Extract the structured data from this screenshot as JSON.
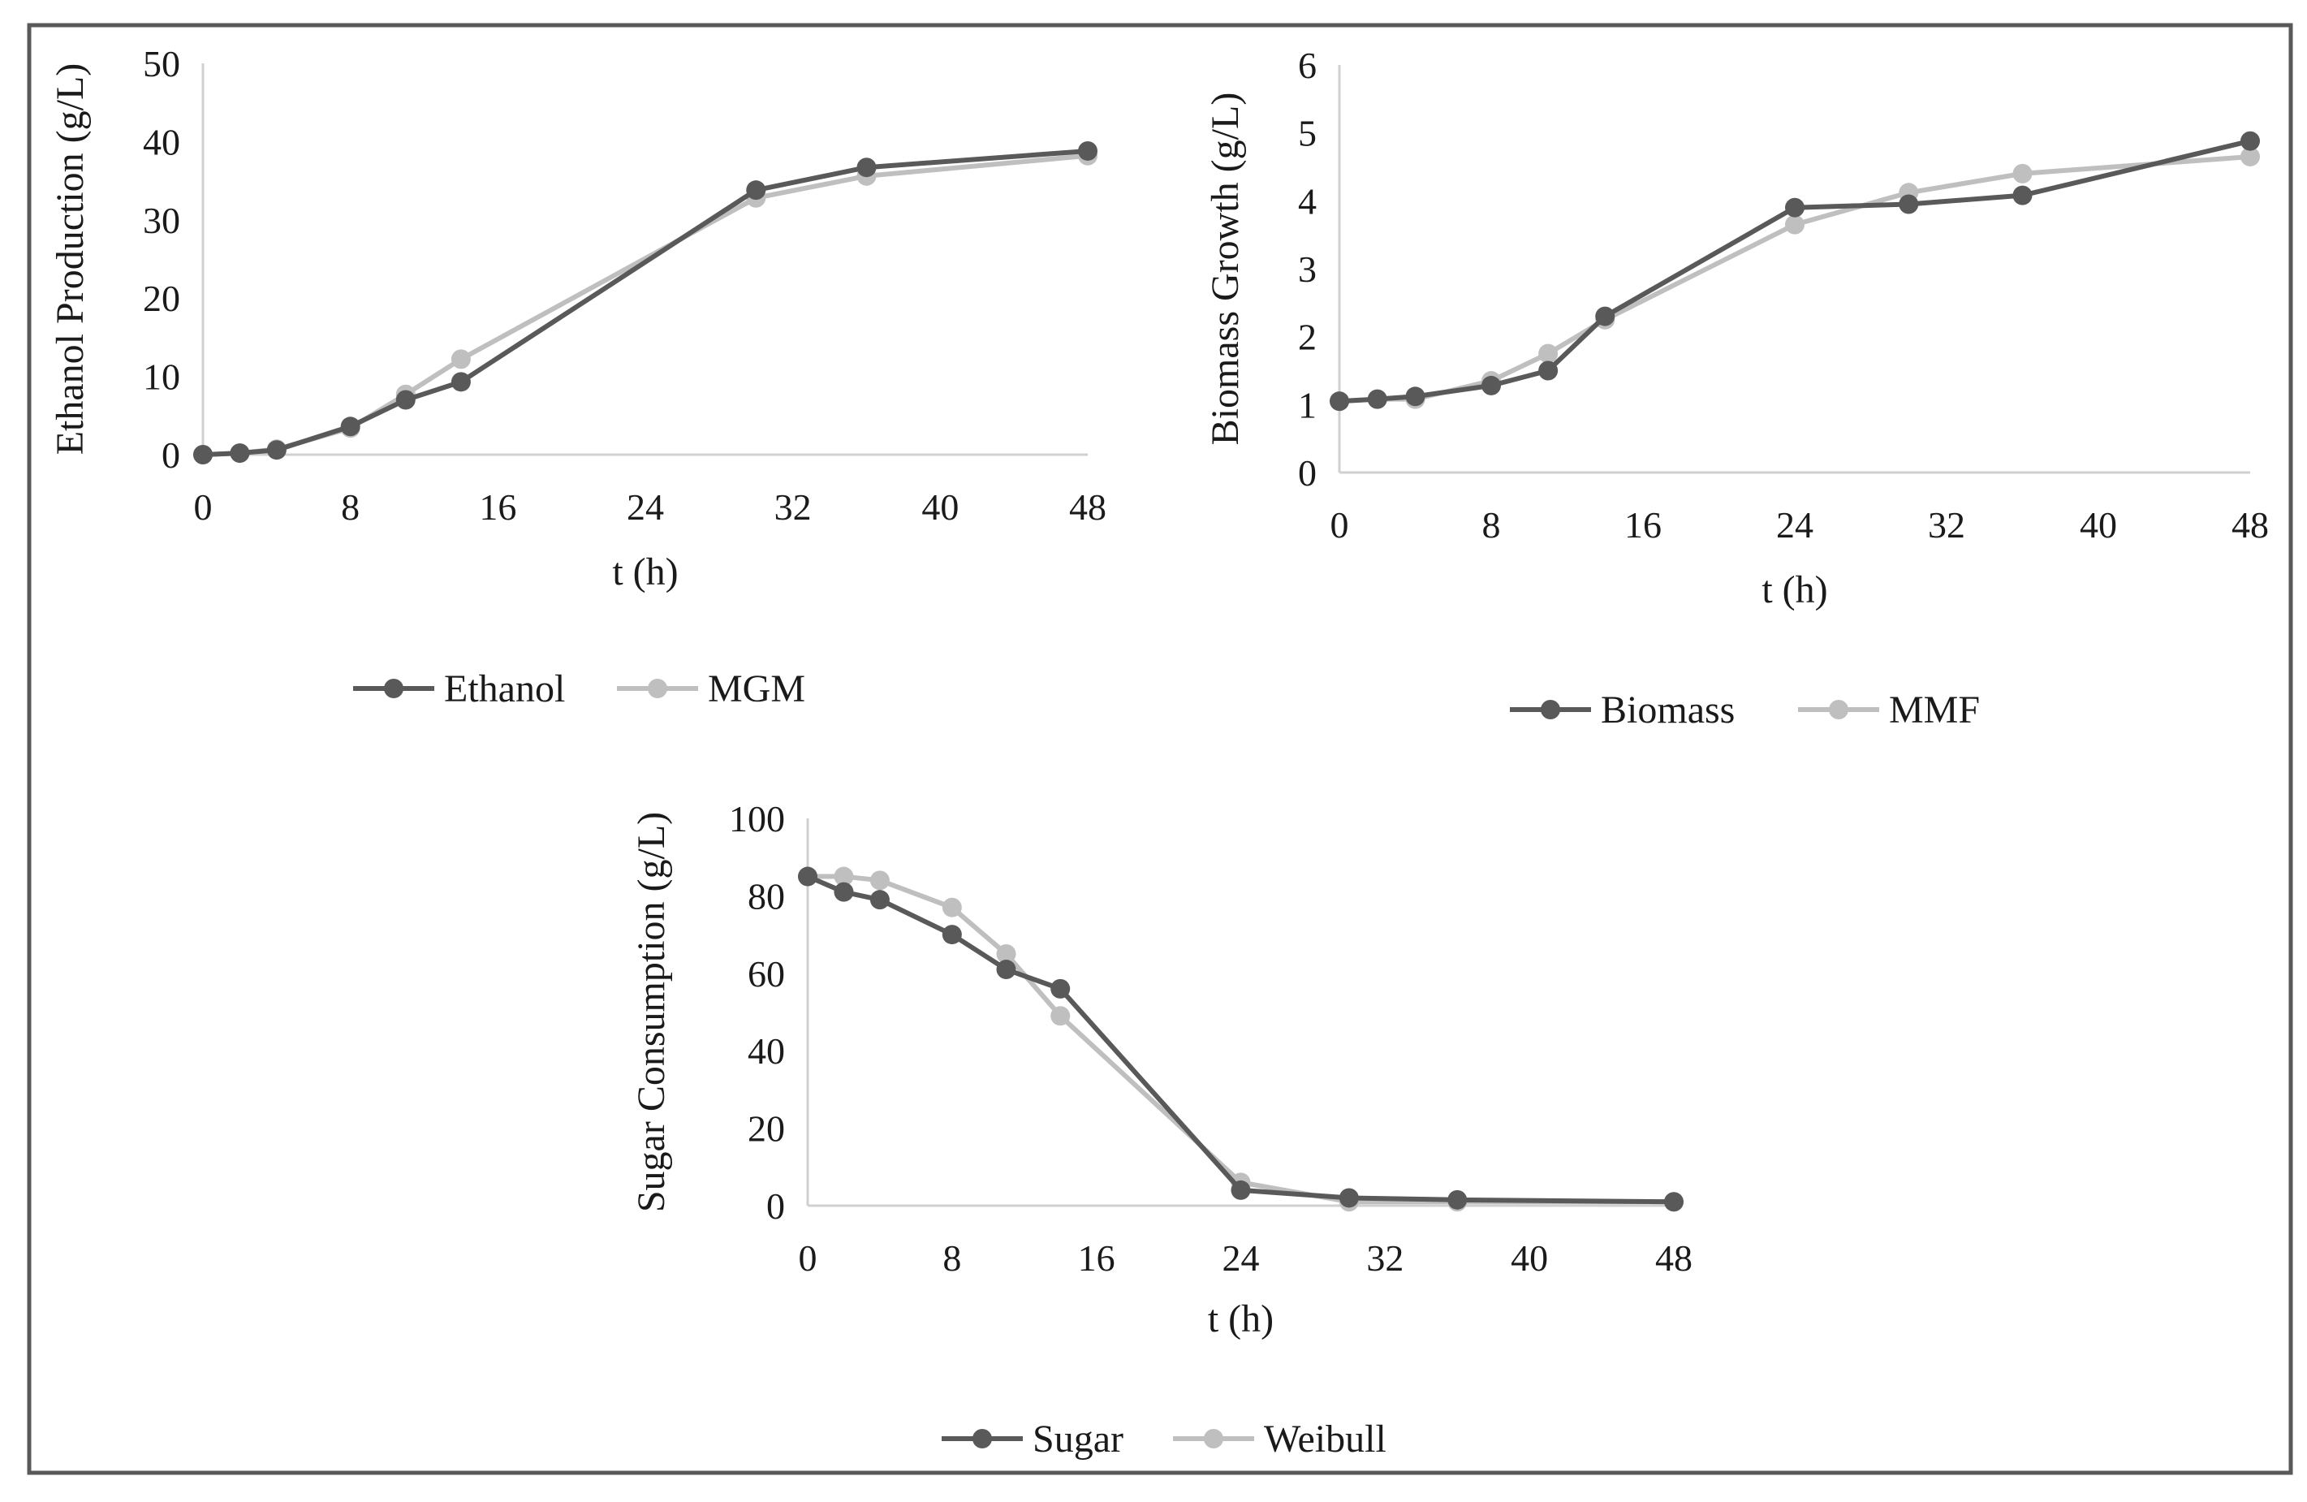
{
  "colors": {
    "series_dark": "#595959",
    "series_light": "#bfbfbf",
    "axis": "#d0d0d0",
    "border": "#595959"
  },
  "chart_data": [
    {
      "type": "line",
      "title": "",
      "xlabel": "t (h)",
      "ylabel": "Ethanol Production (g/L)",
      "xlim": [
        0,
        48
      ],
      "ylim": [
        0,
        50
      ],
      "xticks": [
        0,
        8,
        16,
        24,
        32,
        40,
        48
      ],
      "yticks": [
        0,
        10,
        20,
        30,
        40,
        50
      ],
      "grid": false,
      "legend": "bottom",
      "series": [
        {
          "name": "Ethanol",
          "x": [
            0,
            2,
            4,
            8,
            11,
            14,
            30,
            36,
            48
          ],
          "y": [
            0,
            0.2,
            0.6,
            3.6,
            7.0,
            9.3,
            33.8,
            36.7,
            38.8
          ]
        },
        {
          "name": "MGM",
          "x": [
            0,
            2,
            4,
            8,
            11,
            14,
            30,
            36,
            48
          ],
          "y": [
            0,
            0.2,
            0.7,
            3.4,
            7.7,
            12.2,
            32.8,
            35.6,
            38.2
          ]
        }
      ]
    },
    {
      "type": "line",
      "title": "",
      "xlabel": "t (h)",
      "ylabel": "Biomass Growth (g/L)",
      "xlim": [
        0,
        48
      ],
      "ylim": [
        0,
        6
      ],
      "xticks": [
        0,
        8,
        16,
        24,
        32,
        40,
        48
      ],
      "yticks": [
        0,
        1,
        2,
        3,
        4,
        5,
        6
      ],
      "grid": false,
      "legend": "bottom",
      "series": [
        {
          "name": "Biomass",
          "x": [
            0,
            2,
            4,
            8,
            11,
            14,
            24,
            30,
            36,
            48
          ],
          "y": [
            1.05,
            1.08,
            1.12,
            1.28,
            1.5,
            2.3,
            3.9,
            3.95,
            4.08,
            4.88
          ]
        },
        {
          "name": "MMF",
          "x": [
            0,
            2,
            4,
            8,
            11,
            14,
            24,
            30,
            36,
            48
          ],
          "y": [
            1.05,
            1.08,
            1.08,
            1.35,
            1.75,
            2.25,
            3.65,
            4.12,
            4.4,
            4.65
          ]
        }
      ]
    },
    {
      "type": "line",
      "title": "",
      "xlabel": "t (h)",
      "ylabel": "Sugar Consumption (g/L)",
      "xlim": [
        0,
        48
      ],
      "ylim": [
        0,
        100
      ],
      "xticks": [
        0,
        8,
        16,
        24,
        32,
        40,
        48
      ],
      "yticks": [
        0,
        20,
        40,
        60,
        80,
        100
      ],
      "grid": false,
      "legend": "bottom",
      "series": [
        {
          "name": "Sugar",
          "x": [
            0,
            2,
            4,
            8,
            11,
            14,
            24,
            30,
            36,
            48
          ],
          "y": [
            85,
            81,
            79,
            70,
            61,
            56,
            4,
            2,
            1.5,
            1
          ]
        },
        {
          "name": "Weibull",
          "x": [
            0,
            2,
            4,
            8,
            11,
            14,
            24,
            30,
            36,
            48
          ],
          "y": [
            85,
            85,
            84,
            77,
            65,
            49,
            6,
            1,
            1,
            1
          ]
        }
      ]
    }
  ]
}
